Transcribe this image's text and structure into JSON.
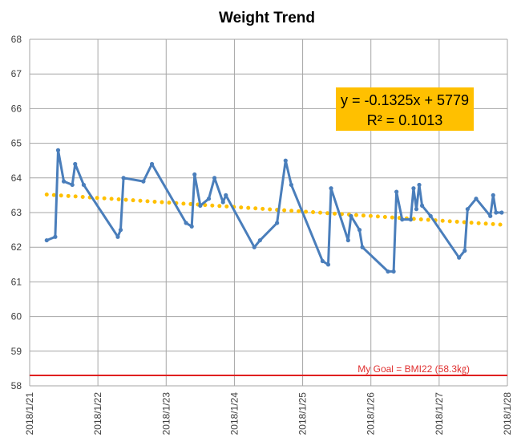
{
  "chart_data": {
    "type": "line",
    "title": "Weight Trend",
    "xlabel": "",
    "ylabel": "",
    "ylim": [
      58,
      68
    ],
    "yticks": [
      "58",
      "59",
      "60",
      "61",
      "62",
      "63",
      "64",
      "65",
      "66",
      "67",
      "68"
    ],
    "xlim": [
      "2018/1/21",
      "2018/1/28"
    ],
    "xticks": [
      "2018/1/21",
      "2018/1/22",
      "2018/1/23",
      "2018/1/24",
      "2018/1/25",
      "2018/1/26",
      "2018/1/27",
      "2018/1/28"
    ],
    "grid": true,
    "series": [
      {
        "style": "line-with-markers",
        "color": "#4a7ebb",
        "points": [
          [
            "2018/1/21 06:00",
            62.2
          ],
          [
            "2018/1/21 09:00",
            62.3
          ],
          [
            "2018/1/21 10:00",
            64.8
          ],
          [
            "2018/1/21 12:00",
            63.9
          ],
          [
            "2018/1/21 15:00",
            63.8
          ],
          [
            "2018/1/21 16:00",
            64.4
          ],
          [
            "2018/1/21 19:00",
            63.8
          ],
          [
            "2018/1/22 07:00",
            62.3
          ],
          [
            "2018/1/22 08:00",
            62.5
          ],
          [
            "2018/1/22 09:00",
            64.0
          ],
          [
            "2018/1/22 16:00",
            63.9
          ],
          [
            "2018/1/22 19:00",
            64.4
          ],
          [
            "2018/1/23 07:00",
            62.7
          ],
          [
            "2018/1/23 09:00",
            62.6
          ],
          [
            "2018/1/23 10:00",
            64.1
          ],
          [
            "2018/1/23 12:00",
            63.2
          ],
          [
            "2018/1/23 15:00",
            63.4
          ],
          [
            "2018/1/23 17:00",
            64.0
          ],
          [
            "2018/1/23 20:00",
            63.3
          ],
          [
            "2018/1/23 21:00",
            63.5
          ],
          [
            "2018/1/24 07:00",
            62.0
          ],
          [
            "2018/1/24 09:00",
            62.2
          ],
          [
            "2018/1/24 15:00",
            62.7
          ],
          [
            "2018/1/24 18:00",
            64.5
          ],
          [
            "2018/1/24 20:00",
            63.8
          ],
          [
            "2018/1/25 07:00",
            61.6
          ],
          [
            "2018/1/25 09:00",
            61.5
          ],
          [
            "2018/1/25 10:00",
            63.7
          ],
          [
            "2018/1/25 16:00",
            62.2
          ],
          [
            "2018/1/25 17:00",
            62.9
          ],
          [
            "2018/1/25 20:00",
            62.5
          ],
          [
            "2018/1/25 21:00",
            62.0
          ],
          [
            "2018/1/26 06:00",
            61.3
          ],
          [
            "2018/1/26 08:00",
            61.3
          ],
          [
            "2018/1/26 09:00",
            63.6
          ],
          [
            "2018/1/26 11:00",
            62.8
          ],
          [
            "2018/1/26 14:00",
            62.8
          ],
          [
            "2018/1/26 15:00",
            63.7
          ],
          [
            "2018/1/26 16:00",
            63.1
          ],
          [
            "2018/1/26 17:00",
            63.8
          ],
          [
            "2018/1/26 18:00",
            63.2
          ],
          [
            "2018/1/26 21:00",
            62.9
          ],
          [
            "2018/1/27 07:00",
            61.7
          ],
          [
            "2018/1/27 09:00",
            61.9
          ],
          [
            "2018/1/27 10:00",
            63.1
          ],
          [
            "2018/1/27 13:00",
            63.4
          ],
          [
            "2018/1/27 18:00",
            62.9
          ],
          [
            "2018/1/27 19:00",
            63.5
          ],
          [
            "2018/1/27 20:00",
            63.0
          ],
          [
            "2018/1/27 22:00",
            63.0
          ]
        ]
      },
      {
        "style": "dotted-trendline",
        "color": "#ffc000",
        "points": [
          [
            "2018/1/21 06:00",
            63.52
          ],
          [
            "2018/1/27 22:00",
            62.65
          ]
        ]
      }
    ],
    "goal_line": {
      "value": 58.3,
      "label": "My Goal = BMI22 (58.3㎏)",
      "color": "#e02020"
    },
    "trendline_equation": {
      "line1": "y = -0.1325x + 5779",
      "line2": "R² = 0.1013",
      "background": "#ffc000"
    }
  }
}
